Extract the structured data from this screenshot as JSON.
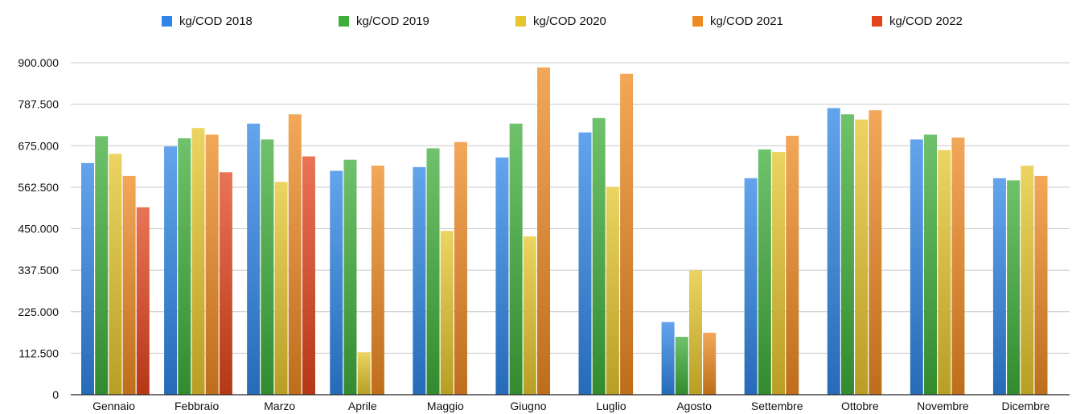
{
  "chart_data": {
    "type": "bar",
    "title": "",
    "xlabel": "",
    "ylabel": "",
    "ylim": [
      0,
      900000
    ],
    "yticks": [
      0,
      112500,
      225000,
      337500,
      450000,
      562500,
      675000,
      787500,
      900000
    ],
    "ytick_labels": [
      "0",
      "112.500",
      "225.000",
      "337.500",
      "450.000",
      "562.500",
      "675.000",
      "787.500",
      "900.000"
    ],
    "grid": true,
    "legend_position": "top",
    "categories": [
      "Gennaio",
      "Febbraio",
      "Marzo",
      "Aprile",
      "Maggio",
      "Giugno",
      "Luglio",
      "Agosto",
      "Settembre",
      "Ottobre",
      "Novembre",
      "Dicembre"
    ],
    "series": [
      {
        "name": "kg/COD  2018",
        "color": "#2f86e6",
        "values": [
          628000,
          673000,
          735000,
          607000,
          617000,
          643000,
          711000,
          197000,
          587000,
          777000,
          692000,
          587000
        ]
      },
      {
        "name": "kg/COD  2019",
        "color": "#3fae3a",
        "values": [
          701000,
          695000,
          692000,
          637000,
          668000,
          735000,
          750000,
          157000,
          665000,
          760000,
          705000,
          581000
        ]
      },
      {
        "name": "kg/COD  2020",
        "color": "#e6c52d",
        "values": [
          653000,
          723000,
          577000,
          115000,
          444000,
          429000,
          563000,
          337000,
          658000,
          746000,
          663000,
          621000
        ]
      },
      {
        "name": "kg/COD  2021",
        "color": "#ee8a22",
        "values": [
          593000,
          705000,
          760000,
          621000,
          685000,
          887000,
          870000,
          168000,
          702000,
          771000,
          697000,
          593000
        ]
      },
      {
        "name": "kg/COD  2022",
        "color": "#e2451c",
        "values": [
          508000,
          603000,
          646000,
          null,
          null,
          null,
          null,
          null,
          null,
          null,
          null,
          null
        ]
      }
    ]
  }
}
